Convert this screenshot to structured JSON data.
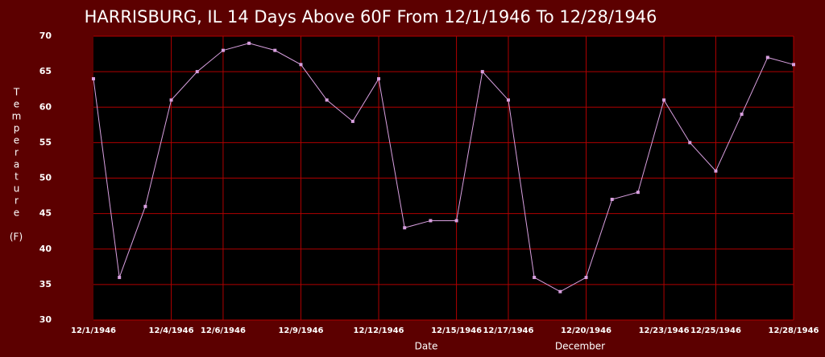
{
  "chart_data": {
    "type": "line",
    "title": "HARRISBURG, IL  14 Days Above 60F From 12/1/1946 To 12/28/1946",
    "y_label": "Temperature",
    "y_unit": "(F)",
    "x_label": "Date",
    "x_sublabel": "December",
    "categories": [
      "12/1/1946",
      null,
      null,
      "12/4/1946",
      null,
      "12/6/1946",
      null,
      null,
      "12/9/1946",
      null,
      null,
      "12/12/1946",
      null,
      null,
      "12/15/1946",
      null,
      "12/17/1946",
      null,
      null,
      "12/20/1946",
      null,
      null,
      "12/23/1946",
      null,
      "12/25/1946",
      null,
      null,
      "12/28/1946"
    ],
    "series": [
      {
        "name": "Temperature",
        "color": "#d9a0e0",
        "values": [
          64,
          36,
          46,
          61,
          65,
          68,
          69,
          68,
          66,
          61,
          58,
          64,
          43,
          44,
          44,
          65,
          61,
          36,
          34,
          36,
          47,
          48,
          61,
          55,
          51,
          59,
          67,
          66
        ]
      }
    ],
    "ylim": [
      30,
      70
    ],
    "yticks": [
      30,
      35,
      40,
      45,
      50,
      55,
      60,
      65,
      70
    ],
    "grid": true
  }
}
